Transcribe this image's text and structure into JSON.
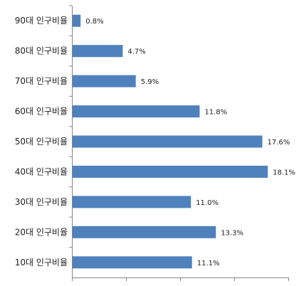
{
  "chart_data": {
    "type": "bar",
    "orientation": "horizontal",
    "categories": [
      "90대 인구비율",
      "80대 인구비율",
      "70대 인구비율",
      "60대 인구비율",
      "50대 인구비율",
      "40대 인구비율",
      "30대 인구비율",
      "20대 인구비율",
      "10대 인구비율"
    ],
    "values": [
      0.8,
      4.7,
      5.9,
      11.8,
      17.6,
      18.1,
      11.0,
      13.3,
      11.1
    ],
    "value_labels": [
      "0.8%",
      "4.7%",
      "5.9%",
      "11.8%",
      "17.6%",
      "18.1%",
      "11.0%",
      "13.3%",
      "11.1%"
    ],
    "title": "",
    "xlabel": "",
    "ylabel": "",
    "xlim": [
      0,
      20
    ],
    "x_tick_values": [
      0,
      5,
      10,
      15,
      20
    ],
    "grid": false,
    "legend": "none",
    "bar_color": "#4f81bd",
    "axis_color": "#868686"
  }
}
